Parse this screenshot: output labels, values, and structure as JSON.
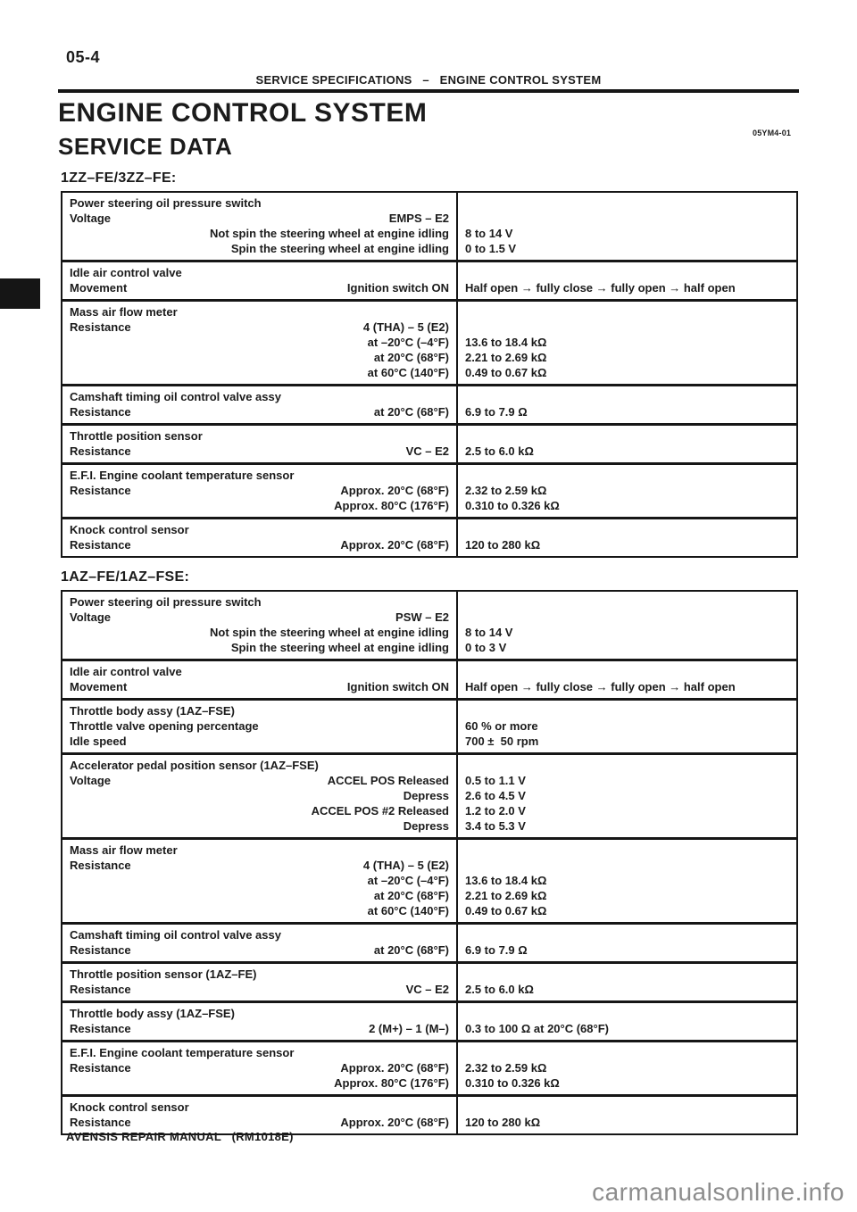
{
  "page": {
    "number": "05-4",
    "running_header": "SERVICE SPECIFICATIONS   –   ENGINE CONTROL SYSTEM",
    "title": "ENGINE CONTROL SYSTEM",
    "subtitle": "SERVICE DATA",
    "doc_code": "05YM4-01",
    "footer": "AVENSIS REPAIR MANUAL   (RM1018E)",
    "watermark": "carmanualsonline.info"
  },
  "sections": [
    {
      "heading": "1ZZ–FE/3ZZ–FE:",
      "rows": [
        {
          "left": [
            {
              "label": "Power steering oil pressure switch",
              "cond": ""
            },
            {
              "label": "Voltage",
              "cond": "EMPS – E2"
            },
            {
              "label": "",
              "cond": "Not spin the steering wheel at engine idling"
            },
            {
              "label": "",
              "cond": "Spin the steering wheel at engine idling"
            }
          ],
          "right": [
            "",
            "",
            "8 to 14 V",
            "0 to 1.5 V"
          ]
        },
        {
          "left": [
            {
              "label": "Idle air control valve",
              "cond": ""
            },
            {
              "label": "Movement",
              "cond": "Ignition switch ON"
            }
          ],
          "right": [
            "",
            "Half open → fully close → fully open → half open"
          ]
        },
        {
          "left": [
            {
              "label": "Mass air flow meter",
              "cond": ""
            },
            {
              "label": "Resistance",
              "cond": "4 (THA) – 5 (E2)"
            },
            {
              "label": "",
              "cond": "at –20°C (–4°F)"
            },
            {
              "label": "",
              "cond": "at 20°C (68°F)"
            },
            {
              "label": "",
              "cond": "at 60°C (140°F)"
            }
          ],
          "right": [
            "",
            "",
            "13.6 to 18.4 kΩ",
            "2.21 to 2.69 kΩ",
            "0.49 to 0.67 kΩ"
          ]
        },
        {
          "left": [
            {
              "label": "Camshaft timing oil control valve assy",
              "cond": ""
            },
            {
              "label": "Resistance",
              "cond": "at 20°C (68°F)"
            }
          ],
          "right": [
            "",
            "6.9 to 7.9 Ω"
          ]
        },
        {
          "left": [
            {
              "label": "Throttle position sensor",
              "cond": ""
            },
            {
              "label": "Resistance",
              "cond": "VC – E2"
            }
          ],
          "right": [
            "",
            "2.5 to 6.0 kΩ"
          ]
        },
        {
          "left": [
            {
              "label": "E.F.I. Engine coolant temperature sensor",
              "cond": ""
            },
            {
              "label": "Resistance",
              "cond": "Approx. 20°C (68°F)"
            },
            {
              "label": "",
              "cond": "Approx. 80°C (176°F)"
            }
          ],
          "right": [
            "",
            "2.32 to 2.59 kΩ",
            "0.310 to 0.326 kΩ"
          ]
        },
        {
          "left": [
            {
              "label": "Knock control sensor",
              "cond": ""
            },
            {
              "label": "Resistance",
              "cond": "Approx. 20°C (68°F)"
            }
          ],
          "right": [
            "",
            "120 to 280 kΩ"
          ]
        }
      ]
    },
    {
      "heading": "1AZ–FE/1AZ–FSE:",
      "rows": [
        {
          "left": [
            {
              "label": "Power steering oil pressure switch",
              "cond": ""
            },
            {
              "label": "Voltage",
              "cond": "PSW – E2"
            },
            {
              "label": "",
              "cond": "Not spin the steering wheel at engine idling"
            },
            {
              "label": "",
              "cond": "Spin the steering wheel at engine idling"
            }
          ],
          "right": [
            "",
            "",
            "8 to 14 V",
            "0 to 3 V"
          ]
        },
        {
          "left": [
            {
              "label": "Idle air control valve",
              "cond": ""
            },
            {
              "label": "Movement",
              "cond": "Ignition switch ON"
            }
          ],
          "right": [
            "",
            "Half open → fully close → fully open → half open"
          ]
        },
        {
          "left": [
            {
              "label": "Throttle body assy (1AZ–FSE)",
              "cond": ""
            },
            {
              "label": "Throttle valve opening percentage",
              "cond": ""
            },
            {
              "label": "Idle speed",
              "cond": ""
            }
          ],
          "right": [
            "",
            "60 % or more",
            "700 ±  50 rpm"
          ]
        },
        {
          "left": [
            {
              "label": "Accelerator pedal position sensor (1AZ–FSE)",
              "cond": ""
            },
            {
              "label": "Voltage",
              "cond": "ACCEL POS Released"
            },
            {
              "label": "",
              "cond": "Depress"
            },
            {
              "label": "",
              "cond": "ACCEL POS #2 Released"
            },
            {
              "label": "",
              "cond": "Depress"
            }
          ],
          "right": [
            "",
            "0.5 to 1.1 V",
            "2.6 to 4.5 V",
            "1.2 to 2.0 V",
            "3.4 to 5.3 V"
          ]
        },
        {
          "left": [
            {
              "label": "Mass air flow meter",
              "cond": ""
            },
            {
              "label": "Resistance",
              "cond": "4 (THA) – 5 (E2)"
            },
            {
              "label": "",
              "cond": "at –20°C (–4°F)"
            },
            {
              "label": "",
              "cond": "at 20°C (68°F)"
            },
            {
              "label": "",
              "cond": "at 60°C (140°F)"
            }
          ],
          "right": [
            "",
            "",
            "13.6 to 18.4 kΩ",
            "2.21 to 2.69 kΩ",
            "0.49 to 0.67 kΩ"
          ]
        },
        {
          "left": [
            {
              "label": "Camshaft timing oil control valve assy",
              "cond": ""
            },
            {
              "label": "Resistance",
              "cond": "at 20°C (68°F)"
            }
          ],
          "right": [
            "",
            "6.9 to 7.9 Ω"
          ]
        },
        {
          "left": [
            {
              "label": "Throttle position sensor (1AZ–FE)",
              "cond": ""
            },
            {
              "label": "Resistance",
              "cond": "VC – E2"
            }
          ],
          "right": [
            "",
            "2.5 to 6.0 kΩ"
          ]
        },
        {
          "left": [
            {
              "label": "Throttle body assy (1AZ–FSE)",
              "cond": ""
            },
            {
              "label": "Resistance",
              "cond": "2 (M+) – 1 (M–)"
            }
          ],
          "right": [
            "",
            "0.3 to 100 Ω at 20°C (68°F)"
          ]
        },
        {
          "left": [
            {
              "label": "E.F.I. Engine coolant temperature sensor",
              "cond": ""
            },
            {
              "label": "Resistance",
              "cond": "Approx. 20°C (68°F)"
            },
            {
              "label": "",
              "cond": "Approx. 80°C (176°F)"
            }
          ],
          "right": [
            "",
            "2.32 to 2.59 kΩ",
            "0.310 to 0.326 kΩ"
          ]
        },
        {
          "left": [
            {
              "label": "Knock control sensor",
              "cond": ""
            },
            {
              "label": "Resistance",
              "cond": "Approx. 20°C (68°F)"
            }
          ],
          "right": [
            "",
            "120 to 280 kΩ"
          ]
        }
      ]
    }
  ]
}
